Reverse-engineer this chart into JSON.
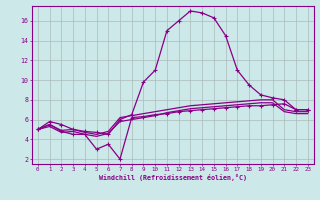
{
  "xlabel": "Windchill (Refroidissement éolien,°C)",
  "bg_color": "#cce8e8",
  "grid_color": "#aabbbb",
  "line_color": "#880088",
  "xlim": [
    -0.5,
    23.5
  ],
  "ylim": [
    1.5,
    17.5
  ],
  "yticks": [
    2,
    4,
    6,
    8,
    10,
    12,
    14,
    16
  ],
  "xticks": [
    0,
    1,
    2,
    3,
    4,
    5,
    6,
    7,
    8,
    9,
    10,
    11,
    12,
    13,
    14,
    15,
    16,
    17,
    18,
    19,
    20,
    21,
    22,
    23
  ],
  "series1_x": [
    0,
    1,
    2,
    3,
    4,
    5,
    6,
    7,
    8,
    9,
    10,
    11,
    12,
    13,
    14,
    15,
    16,
    17,
    18,
    19,
    20,
    21,
    22,
    23
  ],
  "series1_y": [
    5.0,
    5.5,
    4.9,
    5.0,
    4.7,
    4.5,
    4.8,
    6.2,
    6.4,
    6.6,
    6.8,
    7.0,
    7.2,
    7.4,
    7.5,
    7.6,
    7.7,
    7.8,
    7.9,
    8.0,
    8.0,
    7.0,
    6.8,
    6.8
  ],
  "series2_x": [
    0,
    1,
    2,
    3,
    4,
    5,
    6,
    7,
    8,
    9,
    10,
    11,
    12,
    13,
    14,
    15,
    16,
    17,
    18,
    19,
    20,
    21,
    22,
    23
  ],
  "series2_y": [
    5.0,
    5.3,
    4.7,
    4.8,
    4.5,
    4.3,
    4.6,
    5.8,
    6.0,
    6.2,
    6.4,
    6.7,
    6.9,
    7.1,
    7.2,
    7.3,
    7.4,
    7.5,
    7.6,
    7.7,
    7.7,
    6.8,
    6.6,
    6.6
  ],
  "series3_x": [
    0,
    1,
    2,
    3,
    4,
    5,
    6,
    7,
    8,
    9,
    10,
    11,
    12,
    13,
    14,
    15,
    16,
    17,
    18,
    19,
    20,
    21,
    22,
    23
  ],
  "series3_y": [
    5.0,
    5.5,
    4.8,
    4.5,
    4.5,
    3.0,
    3.5,
    2.0,
    6.2,
    6.3,
    6.5,
    6.6,
    6.8,
    6.9,
    7.0,
    7.1,
    7.2,
    7.3,
    7.4,
    7.4,
    7.5,
    7.6,
    7.0,
    7.0
  ],
  "series4_x": [
    0,
    1,
    2,
    3,
    4,
    5,
    6,
    7,
    8,
    9,
    10,
    11,
    12,
    13,
    14,
    15,
    16,
    17,
    18,
    19,
    20,
    21,
    22,
    23
  ],
  "series4_y": [
    5.0,
    5.8,
    5.5,
    5.0,
    4.8,
    4.7,
    4.5,
    6.0,
    6.5,
    9.8,
    11.0,
    15.0,
    16.0,
    17.0,
    16.8,
    16.3,
    14.5,
    11.0,
    9.5,
    8.5,
    8.2,
    8.0,
    7.0,
    7.0
  ]
}
